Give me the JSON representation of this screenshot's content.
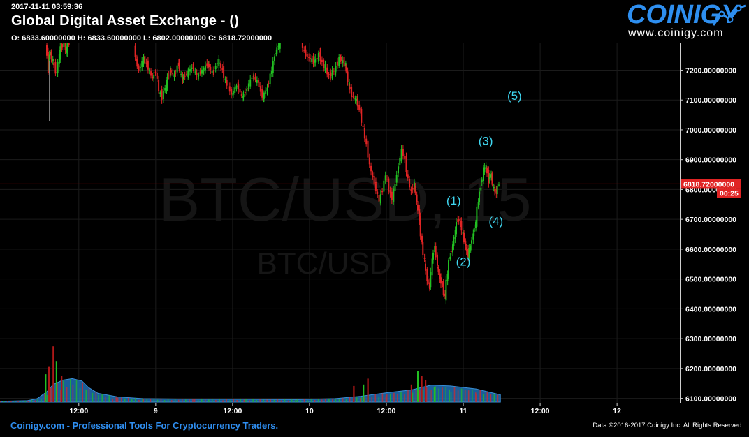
{
  "header": {
    "timestamp": "2017-11-11 03:59:36",
    "title": "Global Digital Asset Exchange -  ()",
    "ohlc": "O: 6833.60000000 H: 6833.60000000 L: 6802.00000000 C: 6818.72000000"
  },
  "brand": {
    "name": "COINIGY",
    "url": "www.coinigy.com"
  },
  "footer": {
    "left": "Coinigy.com - Professional Tools For Cryptocurrency Traders.",
    "right": "Data ©2016-2017 Coinigy Inc. All Rights Reserved."
  },
  "colors": {
    "up": "#22c022",
    "down": "#e02424",
    "volume_area": "#1f6fb4",
    "accent": "#2f8ef0",
    "wave_label": "#3fd6f0",
    "grid": "#1b1b1b"
  },
  "chart_data": {
    "type": "candlestick",
    "watermark": "BTC/USD, 15",
    "watermark_sub": "BTC/USD",
    "ylim": [
      6085,
      7290
    ],
    "y_ticks": [
      "7200.00000000",
      "7100.00000000",
      "7000.00000000",
      "6900.00000000",
      "6800.00000000",
      "6700.00000000",
      "6600.00000000",
      "6500.00000000",
      "6400.00000000",
      "6300.00000000",
      "6200.00000000",
      "6100.00000000"
    ],
    "y_tick_values": [
      7200,
      7100,
      7000,
      6900,
      6800,
      6700,
      6600,
      6500,
      6400,
      6300,
      6200,
      6100
    ],
    "x_ticks": [
      "12:00",
      "9",
      "12:00",
      "10",
      "12:00",
      "11",
      "12:00",
      "12"
    ],
    "x_tick_hours": [
      12,
      24,
      36,
      48,
      60,
      72,
      84,
      96
    ],
    "x_range_hours": [
      -0.3,
      105.8
    ],
    "last_price": {
      "value": 6818.72,
      "label": "6818.72000000",
      "countdown": "00:25"
    },
    "price_path": [
      {
        "h": 6.9,
        "p": 7290
      },
      {
        "h": 7.1,
        "p": 7245
      },
      {
        "h": 7.3,
        "p": 7200
      },
      {
        "h": 7.6,
        "p": 7260
      },
      {
        "h": 8.0,
        "p": 7230
      },
      {
        "h": 8.6,
        "p": 7190
      },
      {
        "h": 9.0,
        "p": 7250
      },
      {
        "h": 9.3,
        "p": 7275
      },
      {
        "h": 9.8,
        "p": 7290
      },
      {
        "h": 10.1,
        "p": 7270
      },
      {
        "h": 10.4,
        "p": 7290
      },
      {
        "h": 20.7,
        "p": 7290
      },
      {
        "h": 21.0,
        "p": 7230
      },
      {
        "h": 21.5,
        "p": 7200
      },
      {
        "h": 22.2,
        "p": 7240
      },
      {
        "h": 22.9,
        "p": 7210
      },
      {
        "h": 23.6,
        "p": 7170
      },
      {
        "h": 24.1,
        "p": 7200
      },
      {
        "h": 24.6,
        "p": 7130
      },
      {
        "h": 25.1,
        "p": 7110
      },
      {
        "h": 25.7,
        "p": 7150
      },
      {
        "h": 26.3,
        "p": 7200
      },
      {
        "h": 27.0,
        "p": 7180
      },
      {
        "h": 27.6,
        "p": 7220
      },
      {
        "h": 28.2,
        "p": 7170
      },
      {
        "h": 29.0,
        "p": 7190
      },
      {
        "h": 29.8,
        "p": 7210
      },
      {
        "h": 30.6,
        "p": 7180
      },
      {
        "h": 31.4,
        "p": 7200
      },
      {
        "h": 32.2,
        "p": 7220
      },
      {
        "h": 33.0,
        "p": 7190
      },
      {
        "h": 33.8,
        "p": 7230
      },
      {
        "h": 34.5,
        "p": 7200
      },
      {
        "h": 35.2,
        "p": 7150
      },
      {
        "h": 36.0,
        "p": 7120
      },
      {
        "h": 36.8,
        "p": 7150
      },
      {
        "h": 37.6,
        "p": 7110
      },
      {
        "h": 38.4,
        "p": 7140
      },
      {
        "h": 39.2,
        "p": 7180
      },
      {
        "h": 40.0,
        "p": 7160
      },
      {
        "h": 40.8,
        "p": 7110
      },
      {
        "h": 41.5,
        "p": 7140
      },
      {
        "h": 42.2,
        "p": 7200
      },
      {
        "h": 42.8,
        "p": 7260
      },
      {
        "h": 43.4,
        "p": 7290
      },
      {
        "h": 46.8,
        "p": 7290
      },
      {
        "h": 47.3,
        "p": 7260
      },
      {
        "h": 48.0,
        "p": 7240
      },
      {
        "h": 48.8,
        "p": 7230
      },
      {
        "h": 49.6,
        "p": 7250
      },
      {
        "h": 50.4,
        "p": 7210
      },
      {
        "h": 51.2,
        "p": 7180
      },
      {
        "h": 52.0,
        "p": 7200
      },
      {
        "h": 52.8,
        "p": 7240
      },
      {
        "h": 53.6,
        "p": 7220
      },
      {
        "h": 54.2,
        "p": 7150
      },
      {
        "h": 54.8,
        "p": 7110
      },
      {
        "h": 55.4,
        "p": 7100
      },
      {
        "h": 56.0,
        "p": 7060
      },
      {
        "h": 56.5,
        "p": 7000
      },
      {
        "h": 57.0,
        "p": 6950
      },
      {
        "h": 57.5,
        "p": 6880
      },
      {
        "h": 58.0,
        "p": 6840
      },
      {
        "h": 58.5,
        "p": 6800
      },
      {
        "h": 59.0,
        "p": 6760
      },
      {
        "h": 59.5,
        "p": 6800
      },
      {
        "h": 60.0,
        "p": 6850
      },
      {
        "h": 60.5,
        "p": 6800
      },
      {
        "h": 61.0,
        "p": 6770
      },
      {
        "h": 61.5,
        "p": 6820
      },
      {
        "h": 62.0,
        "p": 6880
      },
      {
        "h": 62.5,
        "p": 6930
      },
      {
        "h": 63.0,
        "p": 6900
      },
      {
        "h": 63.5,
        "p": 6830
      },
      {
        "h": 64.0,
        "p": 6790
      },
      {
        "h": 64.4,
        "p": 6820
      },
      {
        "h": 64.8,
        "p": 6760
      },
      {
        "h": 65.2,
        "p": 6700
      },
      {
        "h": 65.6,
        "p": 6620
      },
      {
        "h": 66.0,
        "p": 6560
      },
      {
        "h": 66.4,
        "p": 6500
      },
      {
        "h": 66.8,
        "p": 6470
      },
      {
        "h": 67.2,
        "p": 6560
      },
      {
        "h": 67.6,
        "p": 6610
      },
      {
        "h": 68.0,
        "p": 6550
      },
      {
        "h": 68.4,
        "p": 6500
      },
      {
        "h": 68.8,
        "p": 6480
      },
      {
        "h": 69.2,
        "p": 6440
      },
      {
        "h": 69.6,
        "p": 6520
      },
      {
        "h": 70.0,
        "p": 6580
      },
      {
        "h": 70.4,
        "p": 6610
      },
      {
        "h": 70.8,
        "p": 6660
      },
      {
        "h": 71.2,
        "p": 6700
      },
      {
        "h": 71.6,
        "p": 6690
      },
      {
        "h": 72.0,
        "p": 6650
      },
      {
        "h": 72.4,
        "p": 6610
      },
      {
        "h": 72.8,
        "p": 6580
      },
      {
        "h": 73.2,
        "p": 6610
      },
      {
        "h": 73.6,
        "p": 6650
      },
      {
        "h": 74.0,
        "p": 6690
      },
      {
        "h": 74.4,
        "p": 6760
      },
      {
        "h": 74.8,
        "p": 6810
      },
      {
        "h": 75.2,
        "p": 6860
      },
      {
        "h": 75.6,
        "p": 6880
      },
      {
        "h": 76.0,
        "p": 6830
      },
      {
        "h": 76.4,
        "p": 6850
      },
      {
        "h": 76.8,
        "p": 6800
      },
      {
        "h": 77.2,
        "p": 6790
      },
      {
        "h": 77.6,
        "p": 6820
      }
    ],
    "volume_path": [
      {
        "h": -0.3,
        "v": 0.03
      },
      {
        "h": 4,
        "v": 0.05
      },
      {
        "h": 5.5,
        "v": 0.12
      },
      {
        "h": 7,
        "v": 0.35
      },
      {
        "h": 8,
        "v": 0.6
      },
      {
        "h": 9.5,
        "v": 0.75
      },
      {
        "h": 11,
        "v": 0.8
      },
      {
        "h": 12.5,
        "v": 0.72
      },
      {
        "h": 13.5,
        "v": 0.5
      },
      {
        "h": 15,
        "v": 0.3
      },
      {
        "h": 18,
        "v": 0.18
      },
      {
        "h": 22,
        "v": 0.12
      },
      {
        "h": 30,
        "v": 0.1
      },
      {
        "h": 38,
        "v": 0.1
      },
      {
        "h": 46,
        "v": 0.09
      },
      {
        "h": 52,
        "v": 0.12
      },
      {
        "h": 56,
        "v": 0.2
      },
      {
        "h": 60,
        "v": 0.32
      },
      {
        "h": 64,
        "v": 0.42
      },
      {
        "h": 67,
        "v": 0.58
      },
      {
        "h": 70,
        "v": 0.55
      },
      {
        "h": 74,
        "v": 0.45
      },
      {
        "h": 77.8,
        "v": 0.25
      }
    ],
    "volume_spikes": [
      {
        "h": 6.7,
        "v": 0.95
      },
      {
        "h": 7.2,
        "v": 1.2
      },
      {
        "h": 7.9,
        "v": 1.9
      },
      {
        "h": 8.4,
        "v": 1.4
      },
      {
        "h": 9.2,
        "v": 0.9
      },
      {
        "h": 54.8,
        "v": 0.55
      },
      {
        "h": 56.3,
        "v": 0.6
      },
      {
        "h": 57.0,
        "v": 0.8
      },
      {
        "h": 63.8,
        "v": 0.6
      },
      {
        "h": 64.8,
        "v": 1.05
      },
      {
        "h": 65.4,
        "v": 0.9
      },
      {
        "h": 66.0,
        "v": 0.75
      },
      {
        "h": 67.4,
        "v": 0.5
      }
    ],
    "annotations": [
      {
        "label": "(1)",
        "h": 70.5,
        "price": 6750
      },
      {
        "label": "(2)",
        "h": 72.0,
        "price": 6545
      },
      {
        "label": "(3)",
        "h": 75.5,
        "price": 6950
      },
      {
        "label": "(4)",
        "h": 77.1,
        "price": 6680
      },
      {
        "label": "(5)",
        "h": 80.0,
        "price": 7100
      }
    ]
  }
}
